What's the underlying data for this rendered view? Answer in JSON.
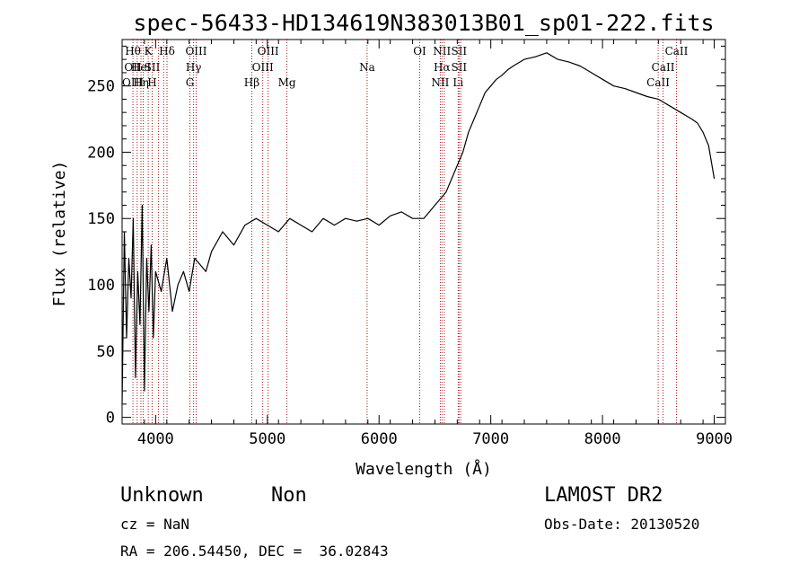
{
  "chart_data": {
    "type": "line",
    "title": "spec-56433-HD134619N383013B01_sp01-222.fits",
    "xlabel": "Wavelength (Å)",
    "ylabel": "Flux (relative)",
    "xlim": [
      3700,
      9100
    ],
    "ylim": [
      -5,
      285
    ],
    "xticks": [
      4000,
      5000,
      6000,
      7000,
      8000,
      9000
    ],
    "yticks": [
      0,
      50,
      100,
      150,
      200,
      250
    ],
    "grid": false,
    "line_color": "#000000",
    "marker_color": "#a01818",
    "series": [
      {
        "x": [
          3700,
          3720,
          3740,
          3760,
          3780,
          3800,
          3820,
          3840,
          3860,
          3880,
          3900,
          3920,
          3940,
          3960,
          3980,
          4000,
          4050,
          4100,
          4150,
          4200,
          4250,
          4300,
          4350,
          4400,
          4450,
          4500,
          4600,
          4700,
          4800,
          4900,
          5000,
          5100,
          5200,
          5300,
          5400,
          5500,
          5600,
          5700,
          5800,
          5900,
          6000,
          6100,
          6200,
          6300,
          6400,
          6500,
          6550,
          6600,
          6650,
          6700,
          6750,
          6800,
          6850,
          6900,
          6950,
          7000,
          7050,
          7100,
          7150,
          7200,
          7300,
          7400,
          7500,
          7600,
          7700,
          7800,
          7900,
          8000,
          8100,
          8200,
          8300,
          8400,
          8500,
          8600,
          8700,
          8800,
          8850,
          8900,
          8950,
          9000
        ],
        "y": [
          10,
          140,
          60,
          120,
          90,
          150,
          30,
          110,
          70,
          160,
          20,
          120,
          80,
          130,
          60,
          110,
          95,
          120,
          80,
          100,
          110,
          95,
          120,
          115,
          110,
          125,
          140,
          130,
          145,
          150,
          145,
          140,
          150,
          145,
          140,
          150,
          145,
          150,
          148,
          150,
          145,
          152,
          155,
          150,
          150,
          160,
          165,
          170,
          180,
          190,
          200,
          215,
          225,
          235,
          245,
          250,
          255,
          258,
          262,
          265,
          270,
          272,
          275,
          270,
          268,
          265,
          260,
          255,
          250,
          248,
          245,
          242,
          240,
          235,
          230,
          225,
          222,
          215,
          205,
          180
        ]
      }
    ],
    "lines": [
      {
        "x": 3797,
        "labels": [
          "Hθ",
          "OII",
          "OIII"
        ]
      },
      {
        "x": 3835,
        "labels": [
          "",
          "",
          ""
        ]
      },
      {
        "x": 3869,
        "labels": [
          "",
          "HeI",
          "Hη"
        ]
      },
      {
        "x": 3889,
        "labels": [
          "",
          "",
          ""
        ]
      },
      {
        "x": 3934,
        "labels": [
          "K",
          "",
          ""
        ]
      },
      {
        "x": 3969,
        "labels": [
          "",
          "SII",
          "H"
        ]
      },
      {
        "x": 4026,
        "labels": [
          "",
          "",
          ""
        ]
      },
      {
        "x": 4072,
        "labels": [
          "",
          "",
          ""
        ]
      },
      {
        "x": 4102,
        "labels": [
          "Hδ",
          "",
          ""
        ]
      },
      {
        "x": 4307,
        "labels": [
          "",
          "",
          "G"
        ]
      },
      {
        "x": 4340,
        "labels": [
          "",
          "Hγ",
          ""
        ]
      },
      {
        "x": 4363,
        "labels": [
          "OIII",
          "",
          ""
        ]
      },
      {
        "x": 4861,
        "labels": [
          "",
          "",
          "Hβ"
        ]
      },
      {
        "x": 4959,
        "labels": [
          "",
          "OIII",
          ""
        ]
      },
      {
        "x": 5007,
        "labels": [
          "OIII",
          "",
          ""
        ]
      },
      {
        "x": 5175,
        "labels": [
          "",
          "",
          "Mg"
        ]
      },
      {
        "x": 5893,
        "labels": [
          "",
          "Na",
          ""
        ]
      },
      {
        "x": 6364,
        "labels": [
          "OI",
          "",
          ""
        ]
      },
      {
        "x": 6548,
        "labels": [
          "",
          "",
          "NII"
        ]
      },
      {
        "x": 6563,
        "labels": [
          "NII",
          "Hα",
          ""
        ]
      },
      {
        "x": 6583,
        "labels": [
          "",
          "",
          ""
        ]
      },
      {
        "x": 6708,
        "labels": [
          "",
          "",
          "Li"
        ]
      },
      {
        "x": 6716,
        "labels": [
          "SII",
          "SII",
          ""
        ]
      },
      {
        "x": 6731,
        "labels": [
          "",
          "",
          ""
        ]
      },
      {
        "x": 8498,
        "labels": [
          "",
          "",
          "CaII"
        ]
      },
      {
        "x": 8542,
        "labels": [
          "",
          "CaII",
          ""
        ]
      },
      {
        "x": 8662,
        "labels": [
          "CaII",
          "",
          ""
        ]
      }
    ]
  },
  "info": {
    "class": "Unknown",
    "subclass": "Non",
    "cz": "cz = NaN",
    "coords": "RA = 206.54450, DEC =  36.02843",
    "survey": "LAMOST DR2",
    "obs_date": "Obs-Date: 20130520"
  }
}
